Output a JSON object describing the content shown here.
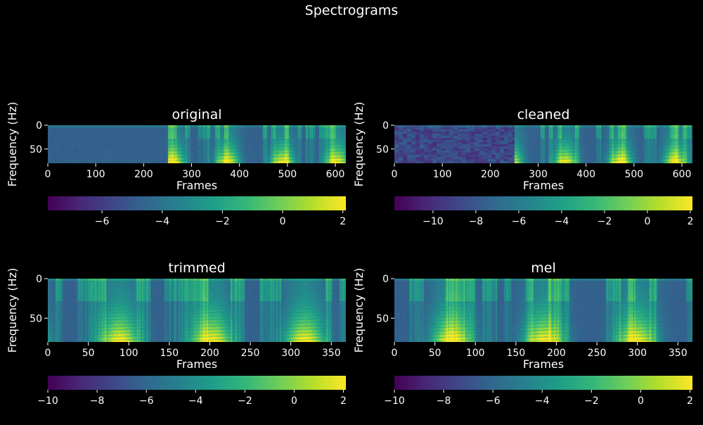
{
  "figure": {
    "title": "Spectrograms",
    "background": "#000000",
    "text_color": "#ffffff"
  },
  "colormap": {
    "name": "viridis",
    "stops": [
      "#440154",
      "#482878",
      "#3e4989",
      "#31688e",
      "#26828e",
      "#1f9e89",
      "#35b779",
      "#6ece58",
      "#b5de2b",
      "#fde725"
    ]
  },
  "chart_data": [
    {
      "type": "heatmap",
      "title": "original",
      "xlabel": "Frames",
      "ylabel": "Frequency (Hz)",
      "xlim": [
        0,
        622
      ],
      "ylim": [
        0,
        80
      ],
      "xticks": [
        0,
        100,
        200,
        300,
        400,
        500,
        600
      ],
      "yticks": [
        0,
        50
      ],
      "speech_start": 250,
      "colorbar": {
        "min": -7.8,
        "max": 2.1,
        "ticks": [
          -6,
          -4,
          -2,
          0,
          2
        ]
      }
    },
    {
      "type": "heatmap",
      "title": "cleaned",
      "xlabel": "Frames",
      "ylabel": "Frequency (Hz)",
      "xlim": [
        0,
        622
      ],
      "ylim": [
        0,
        80
      ],
      "xticks": [
        0,
        100,
        200,
        300,
        400,
        500,
        600
      ],
      "yticks": [
        0,
        50
      ],
      "speech_start": 250,
      "colorbar": {
        "min": -11.8,
        "max": 2.1,
        "ticks": [
          -10,
          -8,
          -6,
          -4,
          -2,
          0,
          2
        ]
      }
    },
    {
      "type": "heatmap",
      "title": "trimmed",
      "xlabel": "Frames",
      "ylabel": "Frequency (Hz)",
      "xlim": [
        0,
        368
      ],
      "ylim": [
        0,
        80
      ],
      "xticks": [
        0,
        50,
        100,
        150,
        200,
        250,
        300,
        350
      ],
      "yticks": [
        0,
        50
      ],
      "speech_start": 0,
      "colorbar": {
        "min": -10,
        "max": 2.1,
        "ticks": [
          -10,
          -8,
          -6,
          -4,
          -2,
          0,
          2
        ]
      }
    },
    {
      "type": "heatmap",
      "title": "mel",
      "xlabel": "Frames",
      "ylabel": "Frequency (Hz)",
      "xlim": [
        0,
        368
      ],
      "ylim": [
        0,
        80
      ],
      "xticks": [
        0,
        50,
        100,
        150,
        200,
        250,
        300,
        350
      ],
      "yticks": [
        0,
        50
      ],
      "speech_start": 0,
      "colorbar": {
        "min": -10,
        "max": 2.1,
        "ticks": [
          -10,
          -8,
          -6,
          -4,
          -2,
          0,
          2
        ]
      }
    }
  ]
}
